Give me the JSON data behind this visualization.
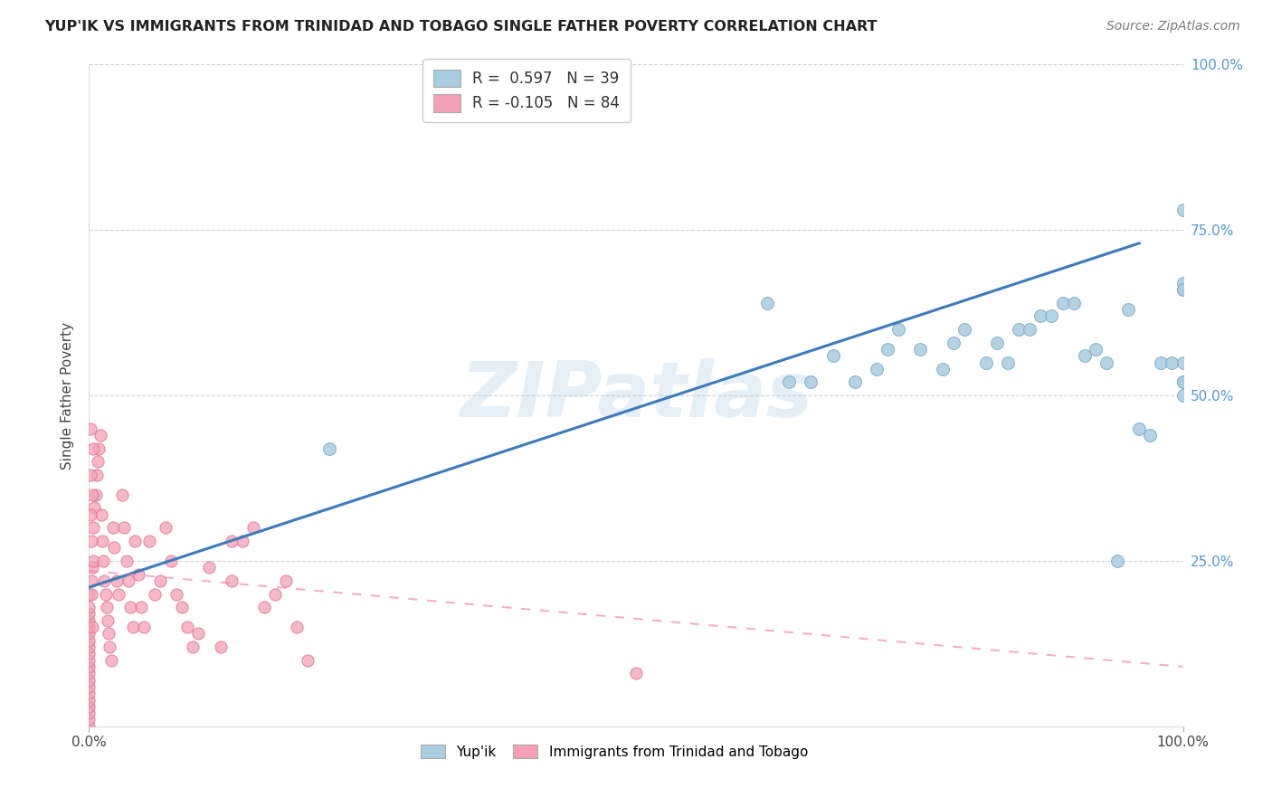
{
  "title": "YUP'IK VS IMMIGRANTS FROM TRINIDAD AND TOBAGO SINGLE FATHER POVERTY CORRELATION CHART",
  "source": "Source: ZipAtlas.com",
  "ylabel": "Single Father Poverty",
  "legend_line1": "R =  0.597   N = 39",
  "legend_line2": "R = -0.105   N = 84",
  "legend_label1": "Yup'ik",
  "legend_label2": "Immigrants from Trinidad and Tobago",
  "watermark": "ZIPatlas",
  "blue_color": "#a8cce0",
  "blue_edge_color": "#7aafc8",
  "pink_color": "#f4a0b8",
  "pink_edge_color": "#e07090",
  "blue_line_color": "#3a7bbf",
  "pink_line_color": "#e87aaa",
  "background_color": "#ffffff",
  "grid_color": "#cccccc",
  "blue_x": [
    0.22,
    0.62,
    0.64,
    0.66,
    0.68,
    0.7,
    0.72,
    0.73,
    0.74,
    0.76,
    0.78,
    0.79,
    0.8,
    0.82,
    0.83,
    0.84,
    0.85,
    0.86,
    0.87,
    0.88,
    0.89,
    0.9,
    0.91,
    0.92,
    0.93,
    0.94,
    0.95,
    0.96,
    0.97,
    0.98,
    0.99,
    1.0,
    1.0,
    1.0,
    1.0,
    1.0,
    1.0,
    1.0,
    1.0
  ],
  "blue_y": [
    0.42,
    0.64,
    0.52,
    0.52,
    0.56,
    0.52,
    0.54,
    0.57,
    0.6,
    0.57,
    0.54,
    0.58,
    0.6,
    0.55,
    0.58,
    0.55,
    0.6,
    0.6,
    0.62,
    0.62,
    0.64,
    0.64,
    0.56,
    0.57,
    0.55,
    0.25,
    0.63,
    0.45,
    0.44,
    0.55,
    0.55,
    0.5,
    0.52,
    0.67,
    0.55,
    0.78,
    0.66,
    0.66,
    0.52
  ],
  "pink_x": [
    0.0,
    0.0,
    0.0,
    0.0,
    0.0,
    0.0,
    0.0,
    0.0,
    0.0,
    0.0,
    0.0,
    0.0,
    0.0,
    0.0,
    0.0,
    0.0,
    0.0,
    0.0,
    0.0,
    0.0,
    0.002,
    0.003,
    0.004,
    0.004,
    0.005,
    0.006,
    0.007,
    0.008,
    0.009,
    0.01,
    0.011,
    0.012,
    0.013,
    0.014,
    0.015,
    0.016,
    0.017,
    0.018,
    0.019,
    0.02,
    0.022,
    0.023,
    0.025,
    0.027,
    0.03,
    0.032,
    0.034,
    0.036,
    0.038,
    0.04,
    0.042,
    0.045,
    0.048,
    0.05,
    0.055,
    0.06,
    0.065,
    0.07,
    0.075,
    0.08,
    0.085,
    0.09,
    0.095,
    0.1,
    0.11,
    0.12,
    0.13,
    0.14,
    0.15,
    0.16,
    0.17,
    0.18,
    0.19,
    0.2,
    0.13,
    0.5,
    0.001,
    0.001,
    0.001,
    0.002,
    0.003,
    0.004,
    0.002,
    0.003
  ],
  "pink_y": [
    0.0,
    0.01,
    0.02,
    0.03,
    0.04,
    0.05,
    0.06,
    0.07,
    0.08,
    0.09,
    0.1,
    0.11,
    0.12,
    0.13,
    0.14,
    0.15,
    0.16,
    0.17,
    0.18,
    0.2,
    0.22,
    0.24,
    0.25,
    0.3,
    0.33,
    0.35,
    0.38,
    0.4,
    0.42,
    0.44,
    0.32,
    0.28,
    0.25,
    0.22,
    0.2,
    0.18,
    0.16,
    0.14,
    0.12,
    0.1,
    0.3,
    0.27,
    0.22,
    0.2,
    0.35,
    0.3,
    0.25,
    0.22,
    0.18,
    0.15,
    0.28,
    0.23,
    0.18,
    0.15,
    0.28,
    0.2,
    0.22,
    0.3,
    0.25,
    0.2,
    0.18,
    0.15,
    0.12,
    0.14,
    0.24,
    0.12,
    0.22,
    0.28,
    0.3,
    0.18,
    0.2,
    0.22,
    0.15,
    0.1,
    0.28,
    0.08,
    0.45,
    0.38,
    0.32,
    0.28,
    0.35,
    0.42,
    0.2,
    0.15
  ],
  "blue_line_x0": 0.0,
  "blue_line_y0": 0.21,
  "blue_line_x1": 0.96,
  "blue_line_y1": 0.73,
  "pink_line_x0": 0.0,
  "pink_line_y0": 0.235,
  "pink_line_x1": 1.0,
  "pink_line_y1": 0.09,
  "xlim": [
    0.0,
    1.0
  ],
  "ylim": [
    0.0,
    1.0
  ],
  "ytick_positions": [
    0.25,
    0.5,
    0.75,
    1.0
  ],
  "ytick_labels": [
    "25.0%",
    "50.0%",
    "75.0%",
    "100.0%"
  ]
}
